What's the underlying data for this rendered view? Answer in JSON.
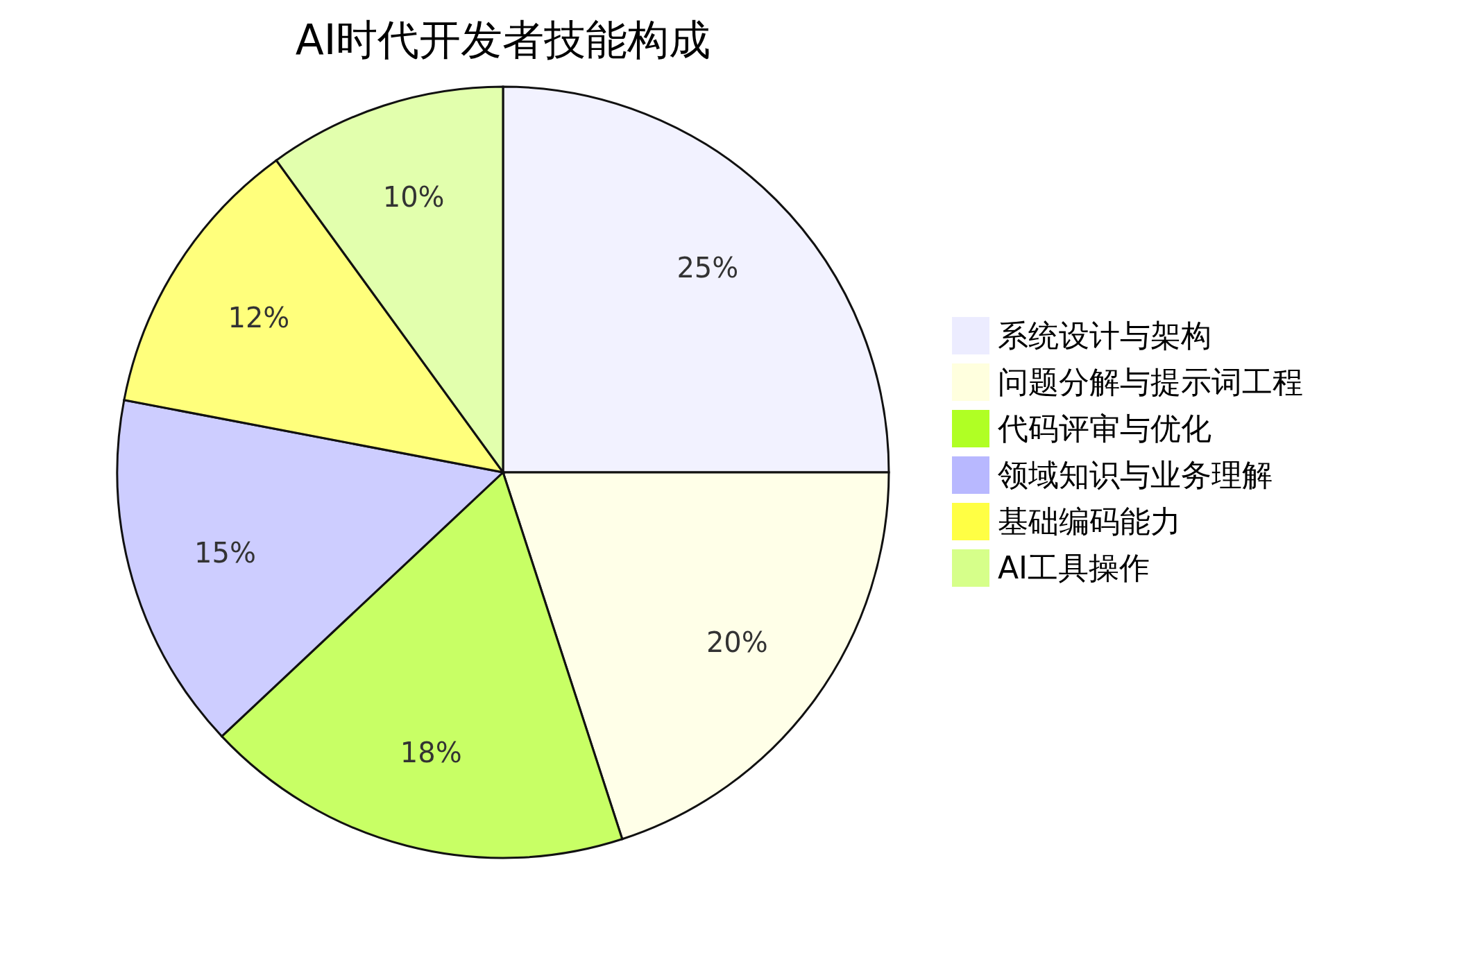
{
  "chart_data": {
    "type": "pie",
    "title": "AI时代开发者技能构成",
    "categories": [
      "系统设计与架构",
      "问题分解与提示词工程",
      "代码评审与优化",
      "领域知识与业务理解",
      "基础编码能力",
      "AI工具操作"
    ],
    "values": [
      25,
      20,
      18,
      15,
      12,
      10
    ],
    "colors": [
      "#ececff",
      "#ffffde",
      "#b0ff24",
      "#b8b8ff",
      "#ffff44",
      "#d6ff8a"
    ],
    "value_labels": [
      "25%",
      "20%",
      "18%",
      "15%",
      "12%",
      "10%"
    ],
    "legend": "right"
  }
}
